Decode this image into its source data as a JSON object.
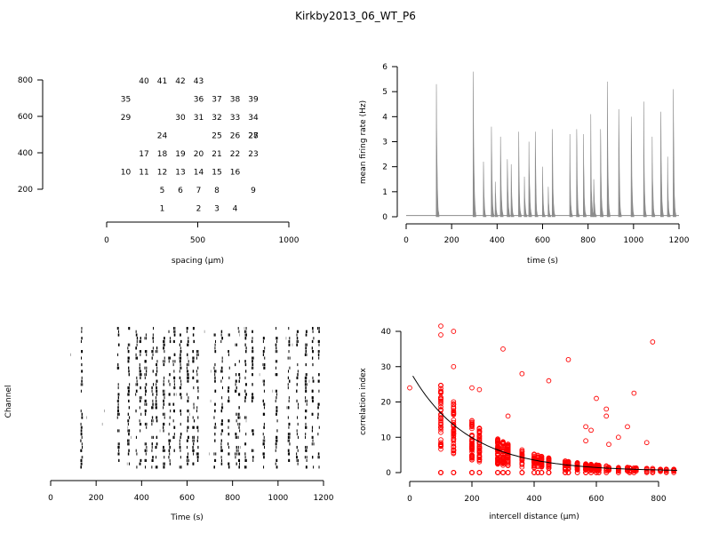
{
  "title": "Kirkby2013_06_WT_P6",
  "colors": {
    "text": "#000000",
    "rate_fill": "#8c8c8c",
    "scatter": "#ff0000",
    "fit": "#000000",
    "raster": "#000000"
  },
  "chart_data": [
    {
      "id": "layout",
      "type": "scatter",
      "marker": "text",
      "xlabel": "spacing (µm)",
      "ylabel": "",
      "xlim": [
        0,
        1000
      ],
      "ylim": [
        150,
        850
      ],
      "xticks": [
        0,
        500,
        1000
      ],
      "yticks": [
        200,
        400,
        600,
        800
      ],
      "points": [
        {
          "label": "1",
          "x": 300,
          "y": 100
        },
        {
          "label": "2",
          "x": 500,
          "y": 100
        },
        {
          "label": "3",
          "x": 600,
          "y": 100
        },
        {
          "label": "4",
          "x": 700,
          "y": 100
        },
        {
          "label": "5",
          "x": 300,
          "y": 200
        },
        {
          "label": "6",
          "x": 400,
          "y": 200
        },
        {
          "label": "7",
          "x": 500,
          "y": 200
        },
        {
          "label": "8",
          "x": 600,
          "y": 200
        },
        {
          "label": "9",
          "x": 800,
          "y": 200
        },
        {
          "label": "10",
          "x": 100,
          "y": 300
        },
        {
          "label": "11",
          "x": 200,
          "y": 300
        },
        {
          "label": "12",
          "x": 300,
          "y": 300
        },
        {
          "label": "13",
          "x": 400,
          "y": 300
        },
        {
          "label": "14",
          "x": 500,
          "y": 300
        },
        {
          "label": "15",
          "x": 600,
          "y": 300
        },
        {
          "label": "16",
          "x": 700,
          "y": 300
        },
        {
          "label": "17",
          "x": 200,
          "y": 400
        },
        {
          "label": "18",
          "x": 300,
          "y": 400
        },
        {
          "label": "19",
          "x": 400,
          "y": 400
        },
        {
          "label": "20",
          "x": 500,
          "y": 400
        },
        {
          "label": "21",
          "x": 600,
          "y": 400
        },
        {
          "label": "22",
          "x": 700,
          "y": 400
        },
        {
          "label": "23",
          "x": 800,
          "y": 400
        },
        {
          "label": "24",
          "x": 300,
          "y": 500
        },
        {
          "label": "25",
          "x": 600,
          "y": 500
        },
        {
          "label": "26",
          "x": 700,
          "y": 500
        },
        {
          "label": "27",
          "x": 800,
          "y": 500
        },
        {
          "label": "28",
          "x": 800,
          "y": 500
        },
        {
          "label": "29",
          "x": 100,
          "y": 600
        },
        {
          "label": "30",
          "x": 400,
          "y": 600
        },
        {
          "label": "31",
          "x": 500,
          "y": 600
        },
        {
          "label": "32",
          "x": 600,
          "y": 600
        },
        {
          "label": "33",
          "x": 700,
          "y": 600
        },
        {
          "label": "34",
          "x": 800,
          "y": 600
        },
        {
          "label": "35",
          "x": 100,
          "y": 700
        },
        {
          "label": "36",
          "x": 500,
          "y": 700
        },
        {
          "label": "37",
          "x": 600,
          "y": 700
        },
        {
          "label": "38",
          "x": 700,
          "y": 700
        },
        {
          "label": "39",
          "x": 800,
          "y": 700
        },
        {
          "label": "40",
          "x": 200,
          "y": 800
        },
        {
          "label": "41",
          "x": 300,
          "y": 800
        },
        {
          "label": "42",
          "x": 400,
          "y": 800
        },
        {
          "label": "43",
          "x": 500,
          "y": 800
        }
      ]
    },
    {
      "id": "rate",
      "type": "area",
      "xlabel": "time (s)",
      "ylabel": "mean firing rate (Hz)",
      "xlim": [
        0,
        1200
      ],
      "ylim": [
        0,
        6
      ],
      "xticks": [
        0,
        200,
        400,
        600,
        800,
        1000,
        1200
      ],
      "yticks": [
        0,
        1,
        2,
        3,
        4,
        5,
        6
      ],
      "baseline": 0.05,
      "bursts": [
        {
          "t": 133,
          "peak": 5.3
        },
        {
          "t": 295,
          "peak": 5.8
        },
        {
          "t": 340,
          "peak": 2.2
        },
        {
          "t": 375,
          "peak": 3.6
        },
        {
          "t": 392,
          "peak": 1.4
        },
        {
          "t": 415,
          "peak": 3.2
        },
        {
          "t": 445,
          "peak": 2.3
        },
        {
          "t": 462,
          "peak": 2.1
        },
        {
          "t": 495,
          "peak": 3.4
        },
        {
          "t": 520,
          "peak": 1.6
        },
        {
          "t": 540,
          "peak": 3.0
        },
        {
          "t": 568,
          "peak": 3.4
        },
        {
          "t": 600,
          "peak": 2.0
        },
        {
          "t": 625,
          "peak": 1.2
        },
        {
          "t": 643,
          "peak": 3.5
        },
        {
          "t": 720,
          "peak": 3.3
        },
        {
          "t": 750,
          "peak": 3.5
        },
        {
          "t": 780,
          "peak": 3.3
        },
        {
          "t": 812,
          "peak": 4.1
        },
        {
          "t": 825,
          "peak": 1.5
        },
        {
          "t": 855,
          "peak": 3.5
        },
        {
          "t": 885,
          "peak": 5.4
        },
        {
          "t": 935,
          "peak": 4.3
        },
        {
          "t": 990,
          "peak": 4.0
        },
        {
          "t": 1045,
          "peak": 4.6
        },
        {
          "t": 1082,
          "peak": 3.2
        },
        {
          "t": 1120,
          "peak": 4.2
        },
        {
          "t": 1150,
          "peak": 2.4
        },
        {
          "t": 1175,
          "peak": 5.1
        }
      ]
    },
    {
      "id": "raster",
      "type": "scatter",
      "marker": "tick",
      "xlabel": "Time (s)",
      "ylabel": "Channel",
      "xlim": [
        0,
        1200
      ],
      "xticks": [
        0,
        200,
        400,
        600,
        800,
        1000,
        1200
      ],
      "channels": 43,
      "bursts": [
        133,
        295,
        340,
        375,
        392,
        415,
        445,
        462,
        495,
        520,
        540,
        568,
        600,
        625,
        643,
        720,
        750,
        780,
        812,
        825,
        855,
        885,
        935,
        990,
        1045,
        1082,
        1120,
        1150,
        1175
      ]
    },
    {
      "id": "correlation",
      "type": "scatter",
      "xlabel": "intercell distance (µm)",
      "ylabel": "correlation index",
      "xlim": [
        0,
        860
      ],
      "ylim": [
        0,
        42
      ],
      "xticks": [
        0,
        200,
        400,
        600,
        800
      ],
      "yticks": [
        0,
        10,
        20,
        30,
        40
      ],
      "distances": [
        0,
        100,
        141,
        200,
        224,
        283,
        300,
        316,
        361,
        400,
        412,
        424,
        447,
        500,
        510,
        539,
        566,
        583,
        600,
        608,
        632,
        640,
        671,
        700,
        707,
        721,
        728,
        762,
        781,
        806,
        825,
        849
      ],
      "fit": {
        "a": 28.5,
        "b": 0.0055,
        "c": 0.4
      },
      "outliers": [
        {
          "x": 0,
          "y": 24
        },
        {
          "x": 100,
          "y": 41.5
        },
        {
          "x": 100,
          "y": 39
        },
        {
          "x": 141,
          "y": 40
        },
        {
          "x": 141,
          "y": 30
        },
        {
          "x": 200,
          "y": 24
        },
        {
          "x": 224,
          "y": 23.5
        },
        {
          "x": 300,
          "y": 35
        },
        {
          "x": 316,
          "y": 16
        },
        {
          "x": 361,
          "y": 28
        },
        {
          "x": 447,
          "y": 26
        },
        {
          "x": 510,
          "y": 32
        },
        {
          "x": 566,
          "y": 13
        },
        {
          "x": 566,
          "y": 9
        },
        {
          "x": 583,
          "y": 12
        },
        {
          "x": 600,
          "y": 21
        },
        {
          "x": 632,
          "y": 18
        },
        {
          "x": 632,
          "y": 16
        },
        {
          "x": 640,
          "y": 8
        },
        {
          "x": 671,
          "y": 10
        },
        {
          "x": 700,
          "y": 13
        },
        {
          "x": 721,
          "y": 22.5
        },
        {
          "x": 762,
          "y": 8.5
        },
        {
          "x": 781,
          "y": 37
        }
      ]
    }
  ]
}
